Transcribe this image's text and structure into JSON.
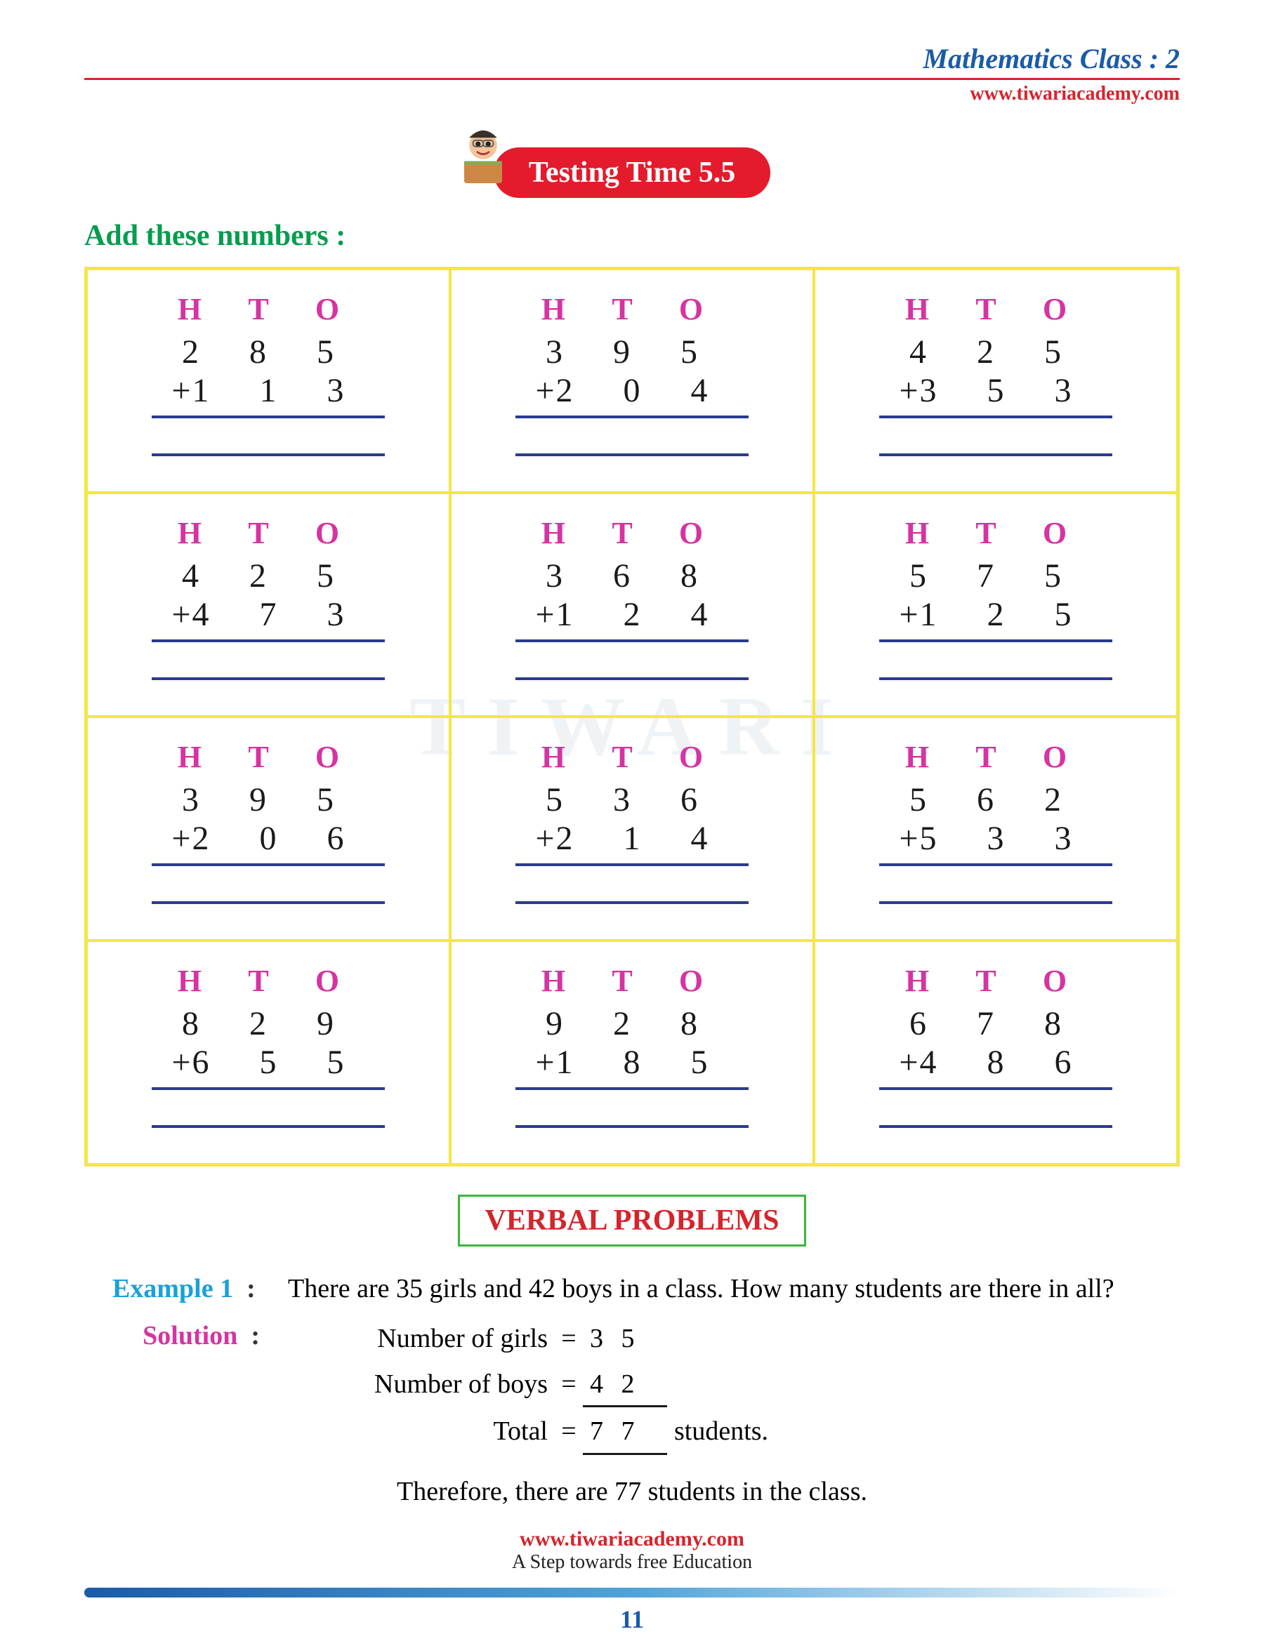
{
  "header": {
    "class_title": "Mathematics Class : 2",
    "website": "www.tiwariacademy.com"
  },
  "badge": {
    "label": "Testing Time 5.5",
    "badge_bg": "#e31b2c",
    "badge_fg": "#ffffff"
  },
  "instruction": "Add these numbers :",
  "hto_label": "H T O",
  "colors": {
    "hto": "#d633a3",
    "instruction": "#089c4e",
    "grid_border": "#f5e642",
    "rule_line": "#2a3b8f",
    "accent_blue": "#1b5ba8",
    "accent_red": "#d6242c",
    "example_label": "#1ba0d8",
    "solution_label": "#d633a3",
    "verbal_border": "#3bb73b"
  },
  "problems": [
    {
      "top": "2 8 5",
      "bottom": "1 1 3"
    },
    {
      "top": "3 9 5",
      "bottom": "2 0 4"
    },
    {
      "top": "4 2 5",
      "bottom": "3 5 3"
    },
    {
      "top": "4 2 5",
      "bottom": "4 7 3"
    },
    {
      "top": "3 6 8",
      "bottom": "1 2 4"
    },
    {
      "top": "5 7 5",
      "bottom": "1 2 5"
    },
    {
      "top": "3 9 5",
      "bottom": "2 0 6"
    },
    {
      "top": "5 3 6",
      "bottom": "2 1 4"
    },
    {
      "top": "5 6 2",
      "bottom": "5 3 3"
    },
    {
      "top": "8 2 9",
      "bottom": "6 5 5"
    },
    {
      "top": "9 2 8",
      "bottom": "1 8 5"
    },
    {
      "top": "6 7 8",
      "bottom": "4 8 6"
    }
  ],
  "verbal_heading": "VERBAL PROBLEMS",
  "example": {
    "label": "Example 1",
    "question": "There are 35 girls and 42 boys in a class. How many students are there in all?",
    "solution_label": "Solution",
    "lines": [
      {
        "text": "Number of girls",
        "val": "3 5",
        "underlined": false,
        "rest": ""
      },
      {
        "text": "Number of boys",
        "val": "4 2",
        "underlined": true,
        "rest": ""
      },
      {
        "text": "Total",
        "val": "7 7",
        "underlined": true,
        "rest": "students."
      }
    ],
    "therefore": "Therefore, there are 77 students in the class."
  },
  "footer": {
    "website": "www.tiwariacademy.com",
    "tagline": "A Step towards free Education",
    "page_number": "11"
  },
  "watermark": "TIWARI"
}
